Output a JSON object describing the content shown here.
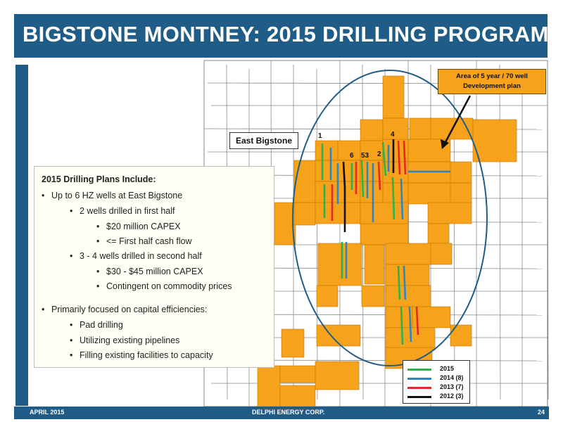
{
  "title": "BIGSTONE MONTNEY:  2015 DRILLING PROGRAM",
  "callout": {
    "line1": "Area of 5 year / 70 well",
    "line2": "Development plan"
  },
  "east_label": "East Bigstone",
  "well_numbers": {
    "n1": "1",
    "n6": "6",
    "n53": "53",
    "n2": "2",
    "n4": "4"
  },
  "plans": {
    "heading": "2015 Drilling Plans Include:",
    "items": [
      {
        "bullet": "•",
        "text": "Up to 6  HZ wells at East Bigstone"
      },
      {
        "bullet": "•",
        "text": "2 wells drilled in first half"
      },
      {
        "bullet": "•",
        "text": "$20 million CAPEX"
      },
      {
        "bullet": "•",
        "text": "<= First half cash flow"
      },
      {
        "bullet": "•",
        "text": "3 - 4 wells drilled in second half"
      },
      {
        "bullet": "•",
        "text": "$30 -  $45 million CAPEX"
      },
      {
        "bullet": "•",
        "text": "Contingent on commodity prices"
      },
      {
        "bullet": "•",
        "text": "Primarily focused on capital efficiencies:"
      },
      {
        "bullet": "•",
        "text": "Pad drilling"
      },
      {
        "bullet": "•",
        "text": "Utilizing existing pipelines"
      },
      {
        "bullet": "•",
        "text": "Filling existing facilities to capacity"
      }
    ]
  },
  "legend": [
    {
      "label": "2015",
      "color": "#2eb34a"
    },
    {
      "label": "2014 (8)",
      "color": "#2e86c1"
    },
    {
      "label": "2013 (7)",
      "color": "#e8262a"
    },
    {
      "label": "2012 (3)",
      "color": "#111111"
    }
  ],
  "colors": {
    "brand": "#1f5c88",
    "land": "#f7a21b",
    "ellipse": "#1f5c88"
  },
  "footer": {
    "left": "APRIL 2015",
    "center": "DELPHI ENERGY CORP.",
    "page": "24"
  }
}
